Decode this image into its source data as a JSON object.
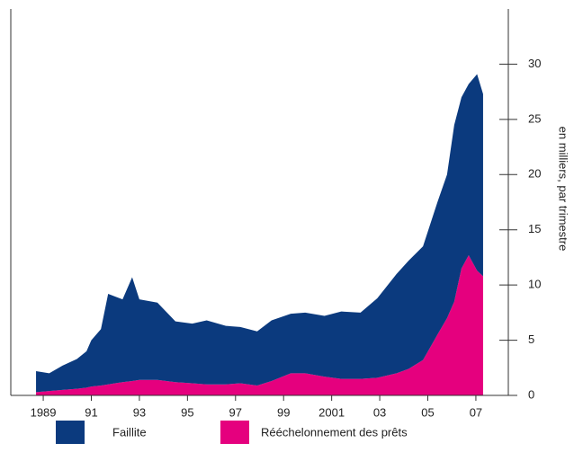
{
  "chart_data": {
    "type": "stacked_area",
    "y_axis_label": "en milliers, par trimestre",
    "x": [
      1988.7,
      1989.25,
      1989.8,
      1990.4,
      1990.8,
      1991.0,
      1991.4,
      1991.7,
      1992.3,
      1992.7,
      1993.0,
      1993.75,
      1994.5,
      1995.2,
      1995.8,
      1996.6,
      1997.2,
      1997.9,
      1998.5,
      1999.3,
      1999.9,
      2000.7,
      2001.4,
      2002.2,
      2002.9,
      2003.7,
      2004.2,
      2004.8,
      2005.4,
      2005.8,
      2006.1,
      2006.4,
      2006.7,
      2007.05,
      2007.3
    ],
    "series": [
      {
        "name": "Faillite",
        "color": "#0b3a7e",
        "values": [
          1.9,
          1.6,
          2.2,
          2.7,
          3.3,
          4.2,
          5.1,
          8.2,
          7.5,
          9.4,
          7.3,
          7.0,
          5.5,
          5.4,
          5.8,
          5.3,
          5.1,
          4.9,
          5.5,
          5.4,
          5.5,
          5.5,
          6.1,
          6.0,
          7.2,
          9.0,
          9.8,
          10.3,
          12.0,
          13.0,
          16.0,
          15.5,
          15.5,
          17.8,
          16.5
        ]
      },
      {
        "name": "Rééchelonnement des prêts",
        "color": "#e5007e",
        "values": [
          0.3,
          0.4,
          0.5,
          0.6,
          0.7,
          0.8,
          0.9,
          1.0,
          1.2,
          1.3,
          1.4,
          1.4,
          1.2,
          1.1,
          1.0,
          1.0,
          1.1,
          0.9,
          1.3,
          2.0,
          2.0,
          1.7,
          1.5,
          1.5,
          1.6,
          2.0,
          2.4,
          3.2,
          5.5,
          7.0,
          8.5,
          11.5,
          12.7,
          11.3,
          10.8
        ]
      }
    ],
    "xlim": [
      1987.65,
      2008.35
    ],
    "xticks": [
      1989,
      {
        "value": 1991,
        "label": "91"
      },
      {
        "value": 1993,
        "label": "93"
      },
      {
        "value": 1995,
        "label": "95"
      },
      {
        "value": 1997,
        "label": "97"
      },
      {
        "value": 1999,
        "label": "99"
      },
      2001,
      {
        "value": 2003,
        "label": "03"
      },
      {
        "value": 2005,
        "label": "05"
      },
      {
        "value": 2007,
        "label": "07"
      }
    ],
    "ylim": [
      0,
      35
    ],
    "yticks": [
      0,
      5,
      10,
      15,
      20,
      25,
      30
    ]
  }
}
